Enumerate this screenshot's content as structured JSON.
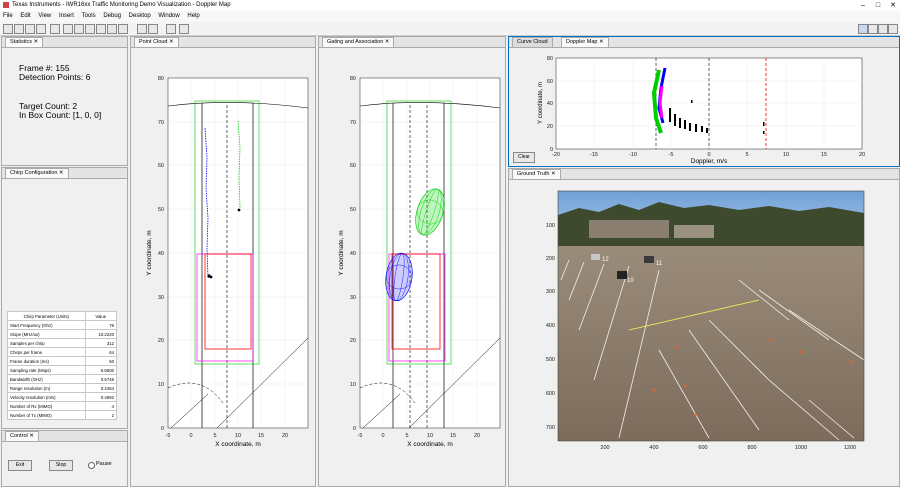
{
  "window": {
    "title": "Texas Instruments - IWR16xx Traffic Monitoring Demo Visualization - Doppler Map"
  },
  "menu": [
    "File",
    "Edit",
    "View",
    "Insert",
    "Tools",
    "Debug",
    "Desktop",
    "Window",
    "Help"
  ],
  "statistics": {
    "tab": "Statistics",
    "frame": "Frame #: 155",
    "detection_points": "Detection Points: 6",
    "target_count": "Target Count: 2",
    "in_box_count": "In Box Count: [1, 0, 0]"
  },
  "chirp": {
    "tab": "Chirp Configuration",
    "headers": [
      "Chirp Parameter (Units)",
      "Value"
    ],
    "rows": [
      [
        "Start Frequency (Ghz)",
        "76"
      ],
      [
        "Slope (MHz/us)",
        "10.2220"
      ],
      [
        "Samples per chirp",
        "312"
      ],
      [
        "Chirps per frame",
        "64"
      ],
      [
        "Frame duration (ms)",
        "50"
      ],
      [
        "Sampling rate (Msps)",
        "5.5500"
      ],
      [
        "Bandwidth (GHz)",
        "0.5745"
      ],
      [
        "Range resolution (m)",
        "0.2454"
      ],
      [
        "Velocity resolution (m/s)",
        "0.4892"
      ],
      [
        "Number of Rx (MIMO)",
        "4"
      ],
      [
        "Number of Tx (MIMO)",
        "2"
      ]
    ]
  },
  "control": {
    "tab": "Control",
    "exit": "Exit",
    "stop": "Stop",
    "pause": "Pause"
  },
  "point_cloud": {
    "tab": "Point Cloud",
    "xlabel": "X coordinate, m",
    "ylabel": "Y coordinate, m",
    "xticks": [
      "-5",
      "0",
      "5",
      "10",
      "15",
      "20"
    ],
    "yticks": [
      "0",
      "10",
      "20",
      "30",
      "40",
      "50",
      "60",
      "70",
      "80"
    ]
  },
  "gating": {
    "tab": "Gating and Association",
    "xlabel": "X coordinate, m",
    "ylabel": "Y coordinate, m",
    "xticks": [
      "-5",
      "0",
      "5",
      "10",
      "15",
      "20"
    ],
    "yticks": [
      "0",
      "10",
      "20",
      "30",
      "40",
      "50",
      "60",
      "70",
      "80"
    ]
  },
  "doppler": {
    "tabs": [
      "Curve Cloud",
      "Doppler Map"
    ],
    "xlabel": "Doppler, m/s",
    "ylabel": "Y coordinate, m",
    "xticks": [
      "-20",
      "-15",
      "-10",
      "-5",
      "0",
      "5",
      "10",
      "15",
      "20"
    ],
    "yticks": [
      "0",
      "20",
      "40",
      "60",
      "80"
    ],
    "clear": "Clear"
  },
  "ground_truth": {
    "tab": "Ground Truth",
    "xticks": [
      "200",
      "400",
      "600",
      "800",
      "1000",
      "1200"
    ],
    "yticks": [
      "100",
      "200",
      "300",
      "400",
      "500",
      "600",
      "700"
    ],
    "labels": [
      "12",
      "11",
      "10"
    ],
    "colors": {
      "sky": "#7aa8d8",
      "asphalt": "#8d7d6e",
      "trees": "#3d4a2e"
    }
  },
  "colors": {
    "accent": "#0072bd",
    "track_green": "#00cc00",
    "track_blue": "#0000ff",
    "box_magenta": "#ff00ff",
    "box_red": "#ff0000"
  }
}
